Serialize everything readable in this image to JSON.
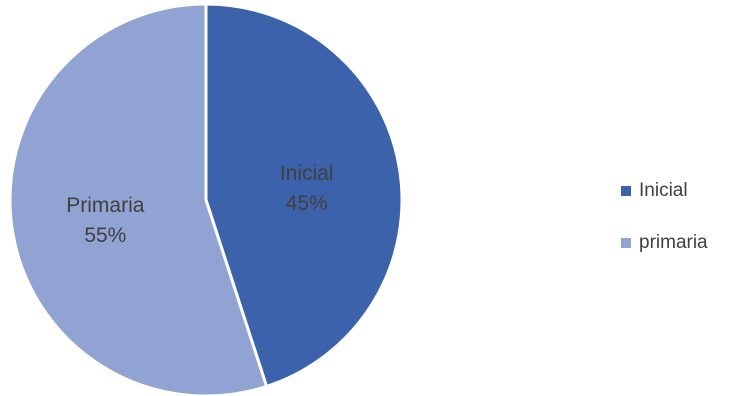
{
  "chart_data": {
    "type": "pie",
    "title": "",
    "slices": [
      {
        "label": "Inicial",
        "value": 45,
        "value_label": "45%",
        "color": "#3b62ab"
      },
      {
        "label": "Primaria",
        "value": 55,
        "value_label": "55%",
        "color": "#90a3d3"
      }
    ],
    "start_angle": "12 o'clock",
    "direction": "clockwise",
    "data_labels": "category and percentage inside slices",
    "legend": {
      "placement": "right",
      "entries": [
        {
          "label": "Inicial",
          "color": "#3b62ab"
        },
        {
          "label": "primaria",
          "color": "#90a3d3"
        }
      ]
    },
    "label_color": "#404040",
    "slice_border_color": "#ffffff"
  }
}
